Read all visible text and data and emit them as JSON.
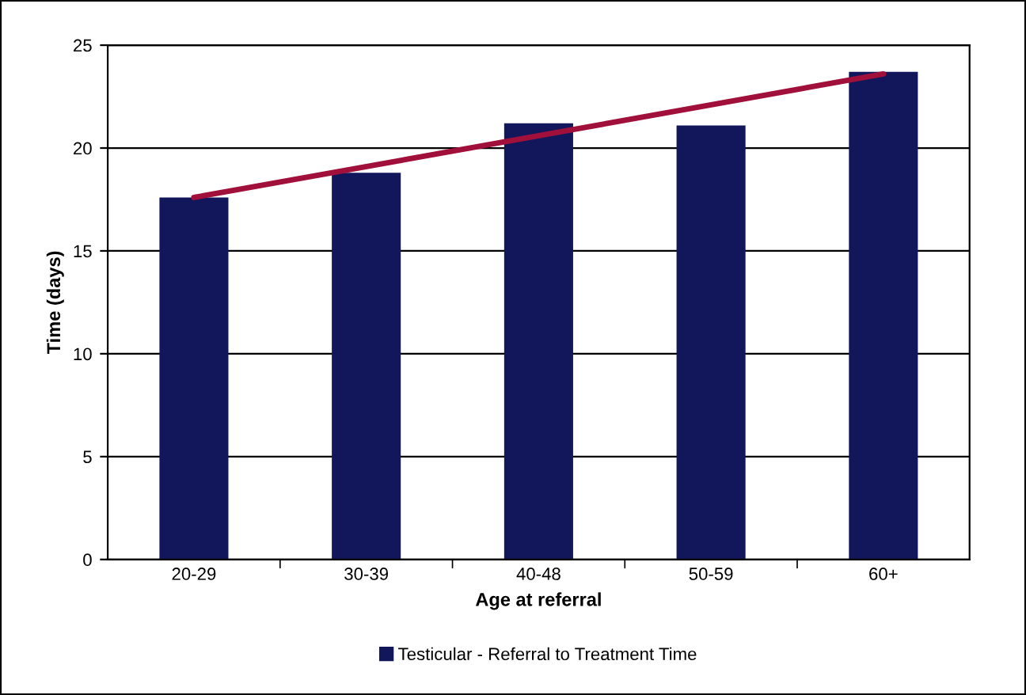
{
  "chart_data": {
    "type": "bar",
    "xlabel": "Age at referral",
    "ylabel": "Time (days)",
    "categories": [
      "20-29",
      "30-39",
      "40-48",
      "50-59",
      "60+"
    ],
    "series": [
      {
        "name": "Testicular - Referral to Treatment Time",
        "color": "#12175c",
        "values": [
          17.6,
          18.8,
          21.2,
          21.1,
          23.7
        ]
      },
      {
        "type": "line",
        "color": "#a0103a",
        "values": [
          17.6,
          null,
          null,
          null,
          23.6
        ]
      }
    ],
    "ylim": [
      0,
      25
    ],
    "yticks": [
      0,
      5,
      10,
      15,
      20,
      25
    ],
    "grid": "y",
    "legend": "bottom"
  }
}
